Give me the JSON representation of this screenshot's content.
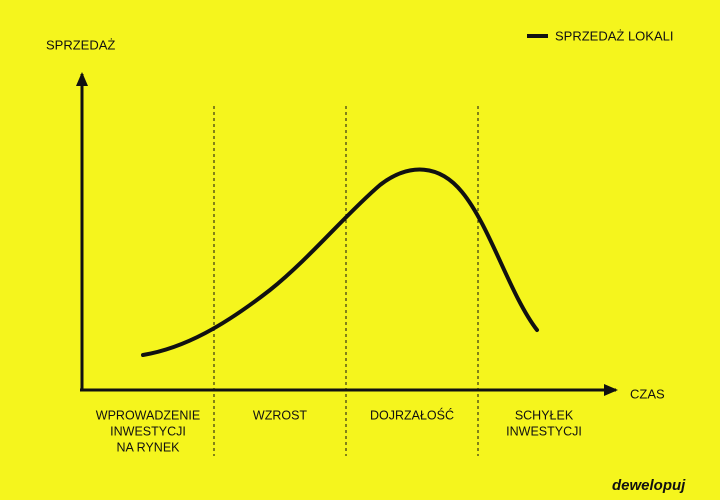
{
  "legend": "SPRZEDAŻ LOKALI",
  "y_axis_label": "SPRZEDAŻ",
  "x_axis_label": "CZAS",
  "phases": [
    {
      "lines": [
        "WPROWADZENIE",
        "INWESTYCJI",
        "NA RYNEK"
      ]
    },
    {
      "lines": [
        "WZROST"
      ]
    },
    {
      "lines": [
        "DOJRZAŁOŚĆ"
      ]
    },
    {
      "lines": [
        "SCHYŁEK",
        "INWESTYCJI"
      ]
    }
  ],
  "logo": "dewelopuj"
}
